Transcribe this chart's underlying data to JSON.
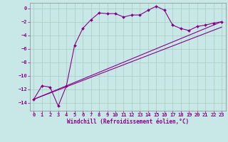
{
  "bg_color": "#c8e8e8",
  "grid_color": "#aaccaa",
  "line_color": "#880088",
  "xlabel": "Windchill (Refroidissement éolien,°C)",
  "xlabel_fontsize": 5.5,
  "tick_fontsize": 5.0,
  "xlim": [
    -0.5,
    23.5
  ],
  "ylim": [
    -15.2,
    0.8
  ],
  "yticks": [
    0,
    -2,
    -4,
    -6,
    -8,
    -10,
    -12,
    -14
  ],
  "xticks": [
    0,
    1,
    2,
    3,
    4,
    5,
    6,
    7,
    8,
    9,
    10,
    11,
    12,
    13,
    14,
    15,
    16,
    17,
    18,
    19,
    20,
    21,
    22,
    23
  ],
  "line1_x": [
    0,
    1,
    2,
    3,
    4,
    5,
    6,
    7,
    8,
    9,
    10,
    11,
    12,
    13,
    14,
    15,
    16,
    17,
    18,
    19,
    20,
    21,
    22,
    23
  ],
  "line1_y": [
    -13.5,
    -11.5,
    -11.7,
    -14.5,
    -11.5,
    -5.5,
    -3.0,
    -1.7,
    -0.7,
    -0.8,
    -0.8,
    -1.3,
    -1.0,
    -1.0,
    -0.3,
    0.3,
    -0.3,
    -2.5,
    -3.0,
    -3.3,
    -2.7,
    -2.5,
    -2.2,
    -2.0
  ],
  "line2_x": [
    0,
    23
  ],
  "line2_y": [
    -13.5,
    -2.0
  ],
  "line3_x": [
    0,
    23
  ],
  "line3_y": [
    -13.5,
    -2.8
  ]
}
